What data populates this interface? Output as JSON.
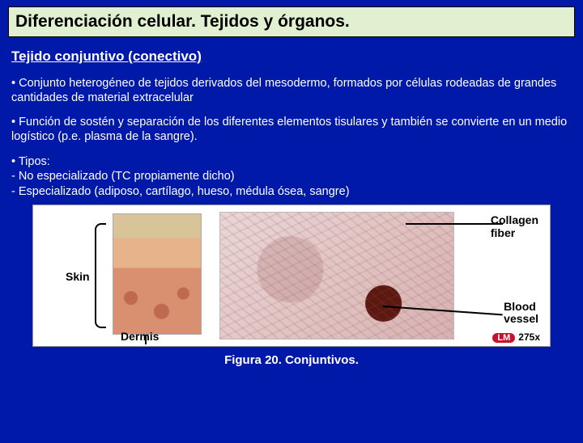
{
  "title": "Diferenciación celular. Tejidos y órganos.",
  "heading": "Tejido conjuntivo (conectivo)",
  "para1": "• Conjunto heterogéneo de tejidos derivados del mesodermo, formados por células rodeadas de grandes cantidades de material extracelular",
  "para2": "• Función de sostén y separación de los diferentes elementos tisulares y también se convierte en un medio logístico (p.e. plasma de la sangre).",
  "types": {
    "lead": "• Tipos:",
    "l1": "- No especializado (TC propiamente dicho)",
    "l2": "- Especializado (adiposo, cartílago, hueso, médula ósea, sangre)"
  },
  "figure": {
    "labels": {
      "skin": "Skin",
      "dermis": "Dermis",
      "collagen": "Collagen\nfiber",
      "blood": "Blood\nvessel"
    },
    "mag_badge": "LM",
    "mag_value": "275x"
  },
  "caption": "Figura  20. Conjuntivos."
}
